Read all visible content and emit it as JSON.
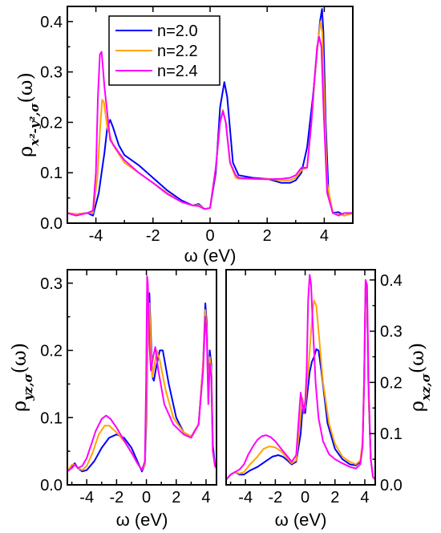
{
  "legend": [
    "n=2.0",
    "n=2.2",
    "n=2.4"
  ],
  "colors": {
    "n=2.0": "#0000ff",
    "n=2.2": "#ffa500",
    "n=2.4": "#ff00ff"
  },
  "chart_data": [
    {
      "id": "top",
      "type": "line",
      "xlabel": "ω (eV)",
      "ylabel": {
        "main": "ρ",
        "sub": "x²-y²,σ",
        "tail": "(ω)"
      },
      "xlim": [
        -5,
        5
      ],
      "ylim": [
        0,
        0.43
      ],
      "xticks": [
        -4,
        -2,
        0,
        2,
        4
      ],
      "xtick_labels": [
        "-4",
        "-2",
        "0",
        "2",
        "4"
      ],
      "yticks": [
        0,
        0.1,
        0.2,
        0.3,
        0.4
      ],
      "ytick_labels": [
        "0.0",
        "0.1",
        "0.2",
        "0.3",
        "0.4"
      ],
      "legend_position": "top-left",
      "series": [
        {
          "name": "n=2.0",
          "x": [
            -5,
            -4.7,
            -4.3,
            -4.1,
            -3.9,
            -3.8,
            -3.7,
            -3.6,
            -3.5,
            -3.4,
            -3.2,
            -3.0,
            -2.5,
            -2.0,
            -1.5,
            -1.0,
            -0.6,
            -0.4,
            -0.2,
            0.0,
            0.2,
            0.35,
            0.5,
            0.6,
            0.8,
            1.0,
            1.5,
            2.0,
            2.5,
            2.8,
            3.0,
            3.2,
            3.4,
            3.6,
            3.75,
            3.85,
            3.92,
            3.97,
            4.05,
            4.15,
            4.3,
            4.5,
            4.7,
            5.0
          ],
          "y": [
            0.02,
            0.018,
            0.02,
            0.015,
            0.06,
            0.1,
            0.14,
            0.19,
            0.205,
            0.19,
            0.155,
            0.135,
            0.115,
            0.09,
            0.065,
            0.045,
            0.035,
            0.038,
            0.028,
            0.03,
            0.1,
            0.23,
            0.28,
            0.25,
            0.12,
            0.095,
            0.09,
            0.088,
            0.08,
            0.08,
            0.085,
            0.1,
            0.15,
            0.25,
            0.34,
            0.4,
            0.425,
            0.38,
            0.2,
            0.06,
            0.02,
            0.022,
            0.015,
            0.02
          ]
        },
        {
          "name": "n=2.2",
          "x": [
            -5,
            -4.7,
            -4.3,
            -4.1,
            -3.95,
            -3.85,
            -3.78,
            -3.72,
            -3.6,
            -3.4,
            -3.0,
            -2.5,
            -2.0,
            -1.5,
            -1.0,
            -0.6,
            -0.4,
            -0.2,
            0.0,
            0.2,
            0.35,
            0.45,
            0.55,
            0.7,
            0.9,
            1.0,
            1.5,
            2.0,
            2.5,
            2.8,
            3.0,
            3.2,
            3.4,
            3.55,
            3.7,
            3.8,
            3.87,
            3.93,
            4.0,
            4.1,
            4.3,
            4.5,
            4.7,
            5.0
          ],
          "y": [
            0.02,
            0.018,
            0.02,
            0.02,
            0.09,
            0.19,
            0.245,
            0.24,
            0.19,
            0.155,
            0.12,
            0.1,
            0.08,
            0.06,
            0.042,
            0.035,
            0.036,
            0.028,
            0.03,
            0.11,
            0.2,
            0.225,
            0.2,
            0.12,
            0.09,
            0.088,
            0.088,
            0.088,
            0.085,
            0.085,
            0.09,
            0.105,
            0.11,
            0.2,
            0.31,
            0.37,
            0.4,
            0.38,
            0.25,
            0.08,
            0.02,
            0.018,
            0.015,
            0.02
          ]
        },
        {
          "name": "n=2.4",
          "x": [
            -5,
            -4.7,
            -4.3,
            -4.1,
            -4.0,
            -3.93,
            -3.86,
            -3.8,
            -3.7,
            -3.5,
            -3.2,
            -3.0,
            -2.5,
            -2.0,
            -1.5,
            -1.0,
            -0.6,
            -0.4,
            -0.2,
            0.0,
            0.2,
            0.35,
            0.45,
            0.55,
            0.7,
            0.9,
            1.0,
            1.5,
            2.0,
            2.5,
            2.8,
            3.0,
            3.2,
            3.4,
            3.55,
            3.65,
            3.75,
            3.82,
            3.9,
            3.98,
            4.1,
            4.3,
            4.5,
            4.7,
            5.0
          ],
          "y": [
            0.02,
            0.015,
            0.02,
            0.025,
            0.1,
            0.25,
            0.335,
            0.34,
            0.27,
            0.165,
            0.14,
            0.125,
            0.1,
            0.08,
            0.058,
            0.042,
            0.035,
            0.034,
            0.028,
            0.03,
            0.11,
            0.2,
            0.222,
            0.2,
            0.12,
            0.095,
            0.09,
            0.088,
            0.087,
            0.088,
            0.09,
            0.095,
            0.11,
            0.11,
            0.2,
            0.28,
            0.35,
            0.37,
            0.35,
            0.22,
            0.06,
            0.02,
            0.015,
            0.02,
            0.02
          ]
        }
      ]
    },
    {
      "id": "bottom-left",
      "type": "line",
      "xlabel": "ω (eV)",
      "ylabel": {
        "main": "ρ",
        "sub": "yz,σ",
        "tail": "(ω)"
      },
      "xlim": [
        -5.3,
        4.7
      ],
      "ylim": [
        0,
        0.32
      ],
      "xticks": [
        -4,
        -2,
        0,
        2,
        4
      ],
      "xtick_labels": [
        "-4",
        "-2",
        "0",
        "2",
        "4"
      ],
      "yticks": [
        0,
        0.1,
        0.2,
        0.3
      ],
      "ytick_labels": [
        "0.0",
        "0.1",
        "0.2",
        "0.3"
      ],
      "series": [
        {
          "name": "n=2.0",
          "x": [
            -5.3,
            -5.0,
            -4.8,
            -4.6,
            -4.3,
            -4.0,
            -3.5,
            -3.0,
            -2.5,
            -2.0,
            -1.5,
            -1.0,
            -0.6,
            -0.3,
            -0.1,
            0.0,
            0.1,
            0.2,
            0.3,
            0.4,
            0.5,
            0.7,
            0.9,
            1.1,
            1.5,
            2.0,
            2.5,
            3.0,
            3.5,
            3.8,
            3.95,
            4.05,
            4.15,
            4.25,
            4.35,
            4.45,
            4.6,
            4.7
          ],
          "y": [
            0.02,
            0.028,
            0.032,
            0.025,
            0.02,
            0.022,
            0.035,
            0.055,
            0.07,
            0.075,
            0.07,
            0.055,
            0.035,
            0.02,
            0.03,
            0.1,
            0.23,
            0.285,
            0.22,
            0.16,
            0.155,
            0.18,
            0.2,
            0.2,
            0.15,
            0.1,
            0.078,
            0.072,
            0.09,
            0.18,
            0.27,
            0.24,
            0.13,
            0.2,
            0.18,
            0.06,
            0.03,
            0.025
          ]
        },
        {
          "name": "n=2.2",
          "x": [
            -5.3,
            -5.0,
            -4.8,
            -4.6,
            -4.3,
            -4.0,
            -3.6,
            -3.2,
            -2.8,
            -2.5,
            -2.0,
            -1.5,
            -1.0,
            -0.6,
            -0.3,
            -0.1,
            0.0,
            0.1,
            0.2,
            0.3,
            0.4,
            0.55,
            0.7,
            0.9,
            1.3,
            1.8,
            2.5,
            3.0,
            3.5,
            3.8,
            3.95,
            4.05,
            4.15,
            4.25,
            4.35,
            4.45,
            4.6,
            4.7
          ],
          "y": [
            0.02,
            0.03,
            0.03,
            0.025,
            0.022,
            0.028,
            0.048,
            0.075,
            0.088,
            0.088,
            0.078,
            0.065,
            0.048,
            0.032,
            0.022,
            0.03,
            0.12,
            0.24,
            0.27,
            0.2,
            0.16,
            0.18,
            0.2,
            0.185,
            0.14,
            0.1,
            0.078,
            0.072,
            0.09,
            0.18,
            0.26,
            0.23,
            0.13,
            0.19,
            0.17,
            0.05,
            0.028,
            0.025
          ]
        },
        {
          "name": "n=2.4",
          "x": [
            -5.3,
            -5.0,
            -4.8,
            -4.6,
            -4.3,
            -4.0,
            -3.7,
            -3.4,
            -3.0,
            -2.7,
            -2.4,
            -2.0,
            -1.5,
            -1.0,
            -0.6,
            -0.3,
            -0.1,
            -0.02,
            0.05,
            0.1,
            0.2,
            0.3,
            0.45,
            0.6,
            0.8,
            1.2,
            1.8,
            2.5,
            3.0,
            3.5,
            3.8,
            3.95,
            4.05,
            4.15,
            4.25,
            4.35,
            4.45,
            4.6,
            4.7
          ],
          "y": [
            0.02,
            0.025,
            0.03,
            0.025,
            0.028,
            0.04,
            0.06,
            0.08,
            0.098,
            0.103,
            0.098,
            0.085,
            0.066,
            0.048,
            0.032,
            0.022,
            0.035,
            0.15,
            0.31,
            0.3,
            0.21,
            0.17,
            0.19,
            0.205,
            0.17,
            0.12,
            0.09,
            0.075,
            0.07,
            0.09,
            0.17,
            0.25,
            0.22,
            0.12,
            0.18,
            0.16,
            0.05,
            0.028,
            0.025
          ]
        }
      ]
    },
    {
      "id": "bottom-right",
      "type": "line",
      "xlabel": "ω (eV)",
      "ylabel": {
        "main": "ρ",
        "sub": "xz,σ",
        "tail": "(ω)"
      },
      "xlim": [
        -5.3,
        4.7
      ],
      "ylim": [
        0,
        0.42
      ],
      "xticks": [
        -4,
        -2,
        0,
        2,
        4
      ],
      "xtick_labels": [
        "-4",
        "-2",
        "0",
        "2",
        "4"
      ],
      "yticks": [
        0,
        0.1,
        0.2,
        0.3,
        0.4
      ],
      "ytick_labels": [
        "0.0",
        "0.1",
        "0.2",
        "0.3",
        "0.4"
      ],
      "series": [
        {
          "name": "n=2.0",
          "x": [
            -5.3,
            -5.0,
            -4.7,
            -4.4,
            -4.1,
            -3.7,
            -3.2,
            -2.7,
            -2.2,
            -1.8,
            -1.5,
            -1.2,
            -0.9,
            -0.6,
            -0.3,
            -0.15,
            0.0,
            0.15,
            0.3,
            0.45,
            0.6,
            0.75,
            0.9,
            1.1,
            1.5,
            2.0,
            2.5,
            3.0,
            3.4,
            3.7,
            3.85,
            3.95,
            4.05,
            4.15,
            4.25,
            4.4,
            4.55,
            4.7
          ],
          "y": [
            0.01,
            0.02,
            0.025,
            0.02,
            0.02,
            0.028,
            0.035,
            0.045,
            0.055,
            0.058,
            0.055,
            0.048,
            0.04,
            0.045,
            0.1,
            0.16,
            0.14,
            0.18,
            0.22,
            0.24,
            0.25,
            0.265,
            0.262,
            0.22,
            0.12,
            0.07,
            0.05,
            0.04,
            0.038,
            0.045,
            0.08,
            0.2,
            0.38,
            0.36,
            0.18,
            0.05,
            0.015,
            0.01
          ]
        },
        {
          "name": "n=2.2",
          "x": [
            -5.3,
            -5.0,
            -4.7,
            -4.4,
            -4.1,
            -3.7,
            -3.2,
            -2.8,
            -2.4,
            -2.0,
            -1.6,
            -1.2,
            -0.9,
            -0.6,
            -0.35,
            -0.2,
            -0.1,
            0.0,
            0.1,
            0.2,
            0.35,
            0.5,
            0.6,
            0.75,
            0.9,
            1.2,
            1.6,
            2.0,
            2.5,
            3.0,
            3.4,
            3.7,
            3.85,
            3.95,
            4.05,
            4.15,
            4.25,
            4.4,
            4.55,
            4.7
          ],
          "y": [
            0.01,
            0.02,
            0.025,
            0.022,
            0.025,
            0.04,
            0.055,
            0.07,
            0.075,
            0.073,
            0.065,
            0.052,
            0.042,
            0.048,
            0.12,
            0.17,
            0.16,
            0.15,
            0.19,
            0.22,
            0.28,
            0.34,
            0.36,
            0.35,
            0.3,
            0.2,
            0.12,
            0.08,
            0.055,
            0.045,
            0.04,
            0.048,
            0.085,
            0.21,
            0.39,
            0.37,
            0.18,
            0.05,
            0.015,
            0.01
          ]
        },
        {
          "name": "n=2.4",
          "x": [
            -5.3,
            -5.0,
            -4.7,
            -4.4,
            -4.1,
            -3.8,
            -3.5,
            -3.2,
            -2.9,
            -2.6,
            -2.3,
            -2.0,
            -1.6,
            -1.2,
            -0.9,
            -0.6,
            -0.45,
            -0.3,
            -0.2,
            -0.1,
            0.0,
            0.1,
            0.2,
            0.3,
            0.4,
            0.5,
            0.7,
            0.9,
            1.2,
            1.6,
            2.0,
            2.5,
            3.0,
            3.4,
            3.7,
            3.85,
            3.95,
            4.05,
            4.15,
            4.25,
            4.4,
            4.55,
            4.7
          ],
          "y": [
            0.01,
            0.02,
            0.025,
            0.03,
            0.04,
            0.06,
            0.075,
            0.088,
            0.095,
            0.097,
            0.093,
            0.085,
            0.07,
            0.056,
            0.045,
            0.058,
            0.12,
            0.18,
            0.16,
            0.14,
            0.16,
            0.22,
            0.36,
            0.41,
            0.39,
            0.32,
            0.2,
            0.13,
            0.085,
            0.06,
            0.05,
            0.042,
            0.035,
            0.032,
            0.04,
            0.075,
            0.2,
            0.4,
            0.39,
            0.2,
            0.05,
            0.015,
            0.01
          ]
        }
      ]
    }
  ]
}
